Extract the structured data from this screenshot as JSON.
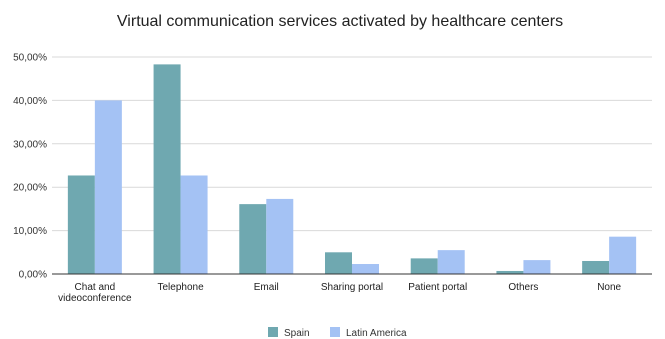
{
  "chart_data": {
    "type": "bar",
    "title": "Virtual communication services activated by healthcare centers",
    "xlabel": "",
    "ylabel": "",
    "categories": [
      [
        "Chat and",
        "videoconference"
      ],
      [
        "Telephone"
      ],
      [
        "Email"
      ],
      [
        "Sharing portal"
      ],
      [
        "Patient portal"
      ],
      [
        "Others"
      ],
      [
        "None"
      ]
    ],
    "series": [
      {
        "name": "Spain",
        "color": "#6fa8b0",
        "values": [
          22.7,
          48.3,
          16.1,
          5.0,
          3.6,
          0.7,
          3.0
        ]
      },
      {
        "name": "Latin America",
        "color": "#a4c2f4",
        "values": [
          40.0,
          22.7,
          17.3,
          2.3,
          5.5,
          3.2,
          8.6
        ]
      }
    ],
    "ylim": [
      0,
      50
    ],
    "yticks": [
      "0,00%",
      "10,00%",
      "20,00%",
      "30,00%",
      "40,00%",
      "50,00%"
    ],
    "grid": true,
    "legend_position": "bottom"
  }
}
